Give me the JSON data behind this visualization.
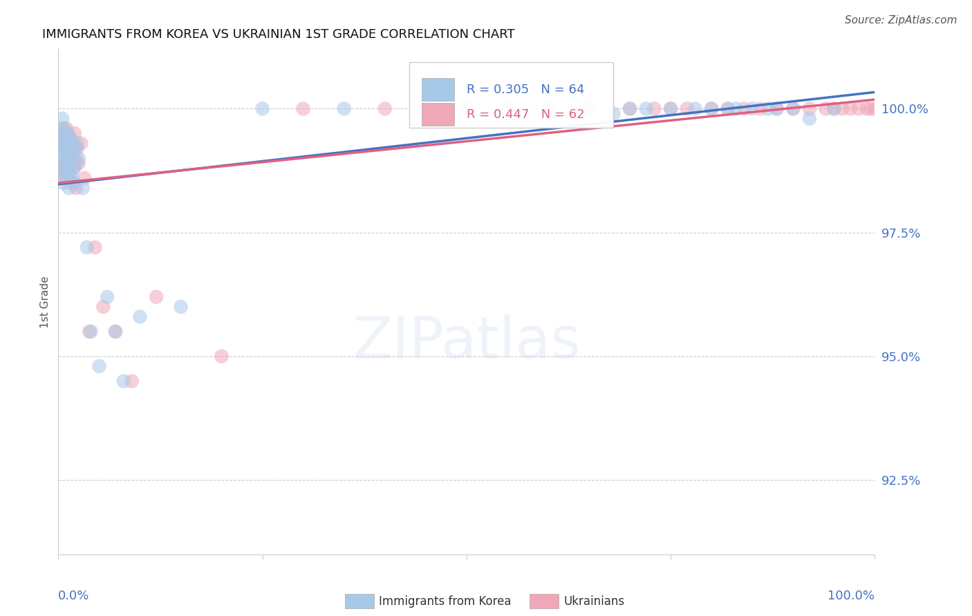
{
  "title": "IMMIGRANTS FROM KOREA VS UKRAINIAN 1ST GRADE CORRELATION CHART",
  "source": "Source: ZipAtlas.com",
  "ylabel": "1st Grade",
  "y_ticks": [
    92.5,
    95.0,
    97.5,
    100.0
  ],
  "xlim": [
    0.0,
    100.0
  ],
  "ylim": [
    91.0,
    101.2
  ],
  "korea_R": 0.305,
  "korea_N": 64,
  "ukraine_R": 0.447,
  "ukraine_N": 62,
  "korea_color": "#A8C8E8",
  "ukraine_color": "#F0A8B8",
  "korea_line_color": "#4472C4",
  "ukraine_line_color": "#E06080",
  "background_color": "#ffffff",
  "korea_x": [
    0.2,
    0.3,
    0.4,
    0.5,
    0.5,
    0.6,
    0.6,
    0.7,
    0.7,
    0.8,
    0.8,
    0.9,
    0.9,
    1.0,
    1.0,
    1.1,
    1.1,
    1.2,
    1.2,
    1.3,
    1.3,
    1.4,
    1.4,
    1.5,
    1.5,
    1.6,
    1.7,
    1.8,
    1.9,
    2.0,
    2.1,
    2.2,
    2.3,
    2.5,
    3.0,
    3.5,
    4.0,
    5.0,
    6.0,
    7.0,
    8.0,
    10.0,
    15.0,
    25.0,
    35.0,
    45.0,
    50.0,
    55.0,
    60.0,
    65.0,
    68.0,
    70.0,
    72.0,
    75.0,
    78.0,
    80.0,
    82.0,
    83.0,
    85.0,
    87.0,
    88.0,
    90.0,
    92.0,
    95.0
  ],
  "korea_y": [
    99.2,
    99.5,
    98.8,
    99.0,
    99.8,
    99.3,
    98.5,
    99.6,
    99.1,
    98.7,
    99.4,
    99.2,
    98.9,
    99.5,
    98.6,
    99.3,
    99.0,
    98.8,
    99.5,
    99.1,
    98.4,
    99.2,
    98.7,
    99.4,
    99.0,
    99.3,
    98.6,
    99.1,
    98.8,
    98.5,
    99.2,
    98.9,
    99.3,
    99.0,
    98.4,
    97.2,
    95.5,
    94.8,
    96.2,
    95.5,
    94.5,
    95.8,
    96.0,
    100.0,
    100.0,
    100.0,
    100.0,
    100.0,
    100.0,
    100.0,
    99.9,
    100.0,
    100.0,
    100.0,
    100.0,
    100.0,
    100.0,
    100.0,
    100.0,
    100.0,
    100.0,
    100.0,
    99.8,
    100.0
  ],
  "ukraine_x": [
    0.2,
    0.3,
    0.4,
    0.5,
    0.6,
    0.6,
    0.7,
    0.7,
    0.8,
    0.8,
    0.9,
    0.9,
    1.0,
    1.0,
    1.1,
    1.2,
    1.3,
    1.4,
    1.5,
    1.6,
    1.7,
    1.8,
    1.9,
    2.0,
    2.1,
    2.2,
    2.3,
    2.5,
    2.8,
    3.2,
    3.8,
    4.5,
    5.5,
    7.0,
    9.0,
    12.0,
    20.0,
    30.0,
    40.0,
    50.0,
    55.0,
    60.0,
    65.0,
    70.0,
    73.0,
    75.0,
    77.0,
    80.0,
    82.0,
    84.0,
    86.0,
    88.0,
    90.0,
    92.0,
    94.0,
    95.0,
    96.0,
    97.0,
    98.0,
    99.0,
    99.5,
    100.0
  ],
  "ukraine_y": [
    99.4,
    98.8,
    99.2,
    99.6,
    98.7,
    99.3,
    99.0,
    99.5,
    98.6,
    99.2,
    99.4,
    98.9,
    99.1,
    99.6,
    98.8,
    99.3,
    98.7,
    99.0,
    99.4,
    98.5,
    99.1,
    99.3,
    98.8,
    99.5,
    99.0,
    98.4,
    99.2,
    98.9,
    99.3,
    98.6,
    95.5,
    97.2,
    96.0,
    95.5,
    94.5,
    96.2,
    95.0,
    100.0,
    100.0,
    100.0,
    100.0,
    100.0,
    100.0,
    100.0,
    100.0,
    100.0,
    100.0,
    100.0,
    100.0,
    100.0,
    100.0,
    100.0,
    100.0,
    100.0,
    100.0,
    100.0,
    100.0,
    100.0,
    100.0,
    100.0,
    100.0,
    100.0
  ]
}
